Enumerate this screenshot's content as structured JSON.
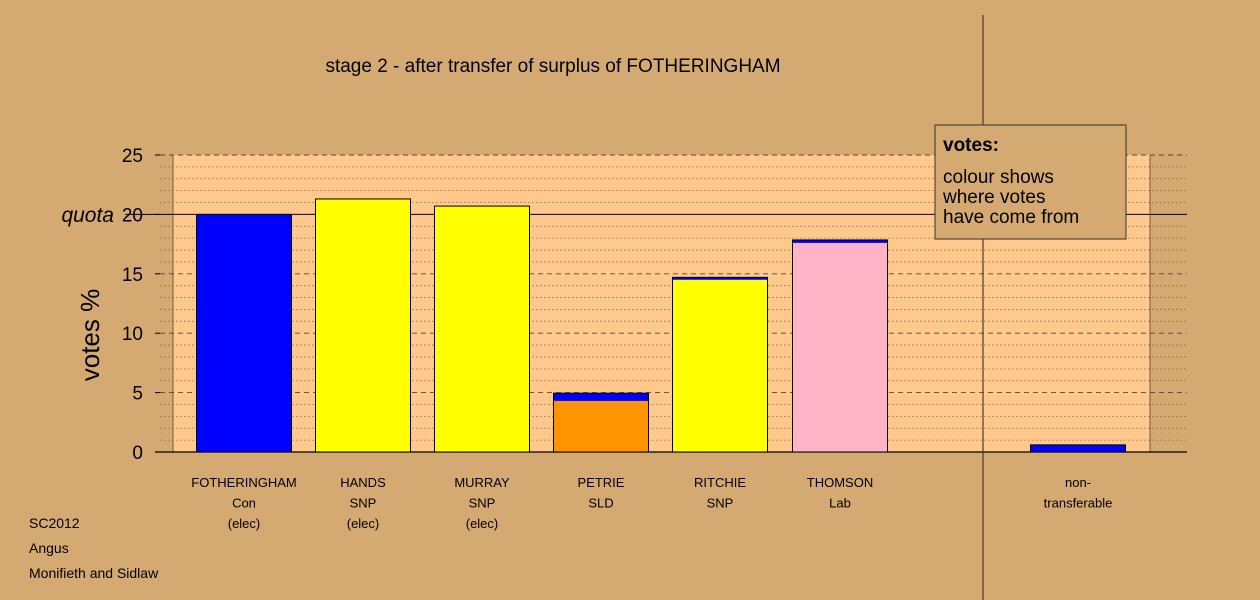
{
  "chart_data": {
    "type": "bar",
    "title": "stage 2 - after transfer of surplus of FOTHERINGHAM",
    "ylabel": "votes %",
    "ylim": [
      0,
      25
    ],
    "yticks": [
      "0",
      "5",
      "10",
      "15",
      "20",
      "25"
    ],
    "quota_label": "quota",
    "quota_value": 20,
    "categories": [
      {
        "name": "FOTHERINGHAM",
        "party": "Con",
        "status": "(elec)"
      },
      {
        "name": "HANDS",
        "party": "SNP",
        "status": "(elec)"
      },
      {
        "name": "MURRAY",
        "party": "SNP",
        "status": "(elec)"
      },
      {
        "name": "PETRIE",
        "party": "SLD",
        "status": ""
      },
      {
        "name": "RITCHIE",
        "party": "SNP",
        "status": ""
      },
      {
        "name": "THOMSON",
        "party": "Lab",
        "status": ""
      },
      {
        "name": "non-",
        "party": "transferable",
        "status": ""
      }
    ],
    "bars": [
      {
        "segments": [
          {
            "value": 20.0,
            "color": "#0000ff"
          }
        ]
      },
      {
        "segments": [
          {
            "value": 21.3,
            "color": "#ffff00"
          }
        ]
      },
      {
        "segments": [
          {
            "value": 20.7,
            "color": "#ffff00"
          }
        ]
      },
      {
        "segments": [
          {
            "value": 4.3,
            "color": "#ff9400"
          },
          {
            "value": 0.65,
            "color": "#0000ff"
          }
        ]
      },
      {
        "segments": [
          {
            "value": 14.5,
            "color": "#ffff00"
          },
          {
            "value": 0.2,
            "color": "#0000ff"
          }
        ]
      },
      {
        "segments": [
          {
            "value": 17.6,
            "color": "#ffb3c6"
          },
          {
            "value": 0.25,
            "color": "#0000ff"
          }
        ]
      },
      {
        "segments": [
          {
            "value": 0.6,
            "color": "#0000ff"
          }
        ]
      }
    ],
    "legend": {
      "title": "votes:",
      "lines": [
        "colour shows",
        "where votes",
        "have come from"
      ]
    },
    "grid": true
  },
  "footer": [
    "SC2012",
    "Angus",
    "Monifieth and Sidlaw"
  ],
  "colors": {
    "background": "#d4a972",
    "plot_background": "#ffc88c",
    "legend_background": "#d4a972"
  }
}
